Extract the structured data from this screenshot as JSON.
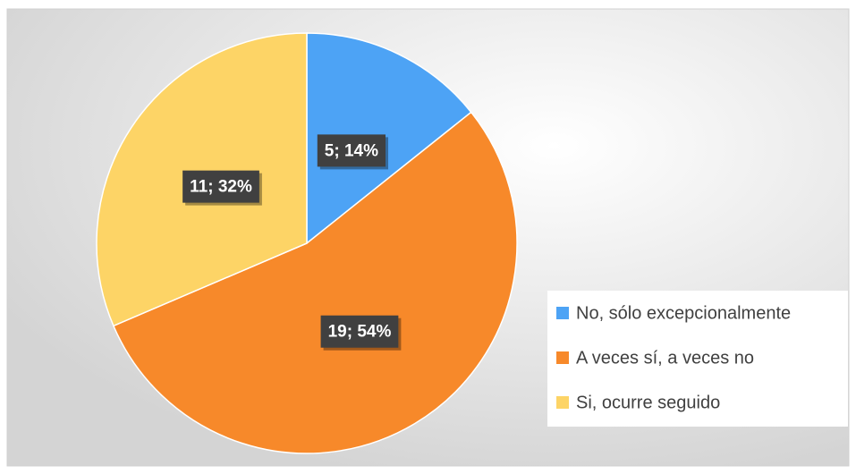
{
  "chart_data": {
    "type": "pie",
    "categories": [
      "No, sólo excepcionalmente",
      "A veces sí, a veces no",
      "Si, ocurre seguido"
    ],
    "values": [
      5,
      19,
      11
    ],
    "value_labels": [
      "5; 14%",
      "19; 54%",
      "11; 32%"
    ],
    "colors": [
      "#4da3f5",
      "#f7892a",
      "#fdd466"
    ],
    "legend": "right"
  }
}
